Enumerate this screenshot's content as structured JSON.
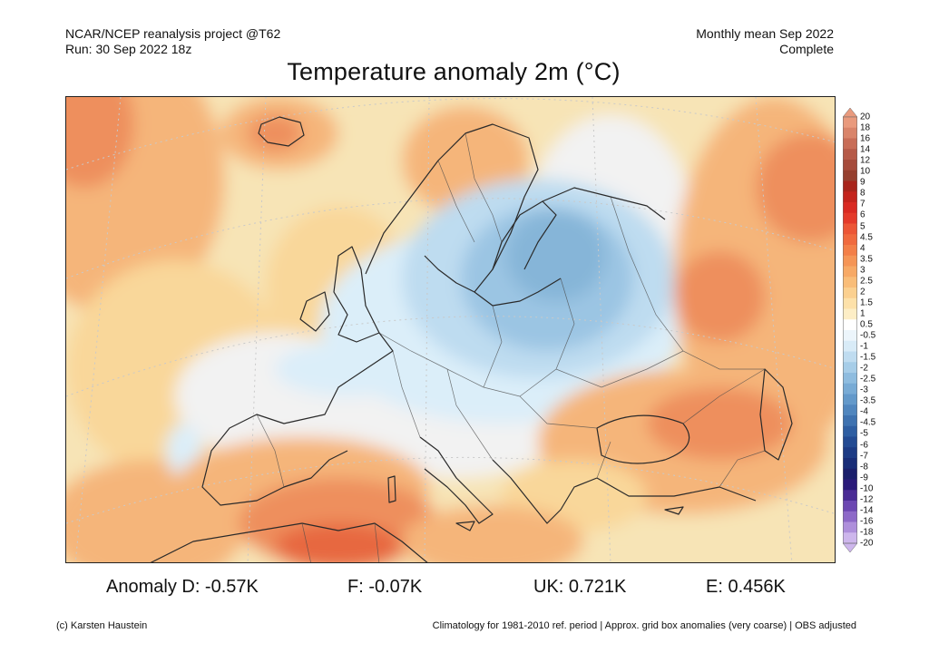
{
  "header": {
    "line1_left": "NCAR/NCEP reanalysis project @T62",
    "line2_left": "Run: 30 Sep 2022 18z",
    "line1_right": "Monthly mean Sep 2022",
    "line2_right": "Complete"
  },
  "title": "Temperature anomaly 2m (°C)",
  "map": {
    "region": "Europe",
    "colors": {
      "ocean_base": "#f7e4b6",
      "warm_light": "#f9d79a",
      "warm_mid": "#f5b57a",
      "warm_strong": "#ee8f5d",
      "warm_hot": "#e7683f",
      "near_zero": "#f2f2f2",
      "cold_light": "#dbeef9",
      "cold_mid": "#bedcf0",
      "cold_strong": "#9bc5e3",
      "cold_deep": "#86b5d8",
      "borders": "#333333"
    }
  },
  "colorbar": {
    "labels": [
      "20",
      "18",
      "16",
      "14",
      "12",
      "10",
      "9",
      "8",
      "7",
      "6",
      "5",
      "4.5",
      "4",
      "3.5",
      "3",
      "2.5",
      "2",
      "1.5",
      "1",
      "0.5",
      "-0.5",
      "-1",
      "-1.5",
      "-2",
      "-2.5",
      "-3",
      "-3.5",
      "-4",
      "-4.5",
      "-5",
      "-6",
      "-7",
      "-8",
      "-9",
      "-10",
      "-12",
      "-14",
      "-16",
      "-18",
      "-20"
    ],
    "colors": [
      "#e99a7d",
      "#d9846a",
      "#c86d57",
      "#b65a48",
      "#a64c3c",
      "#96402f",
      "#a8251b",
      "#c4241c",
      "#d92a22",
      "#e43a2a",
      "#ec5636",
      "#f06a3e",
      "#f37f48",
      "#f59556",
      "#f7a965",
      "#f9bd78",
      "#fbd08f",
      "#fde1a9",
      "#fdeec6",
      "#ffffff",
      "#ecf5fb",
      "#d8ebf7",
      "#bfdcf0",
      "#a6cde8",
      "#8ebcdf",
      "#78abd5",
      "#6399ca",
      "#5086be",
      "#3e72b0",
      "#2e5ea2",
      "#234b93",
      "#1c3b85",
      "#182d78",
      "#1a1f6c",
      "#2a1a7a",
      "#4a2b95",
      "#6c47b2",
      "#8d69c8",
      "#ae8fdb",
      "#cdb6ec"
    ]
  },
  "anomalies": {
    "de": "Anomaly D: -0.57K",
    "fr": "F: -0.07K",
    "uk": "UK: 0.721K",
    "eu": "E: 0.456K"
  },
  "footer": {
    "credit": "(c) Karsten Haustein",
    "note": "Climatology for 1981-2010 ref. period | Approx. grid box anomalies (very coarse) | OBS adjusted"
  }
}
